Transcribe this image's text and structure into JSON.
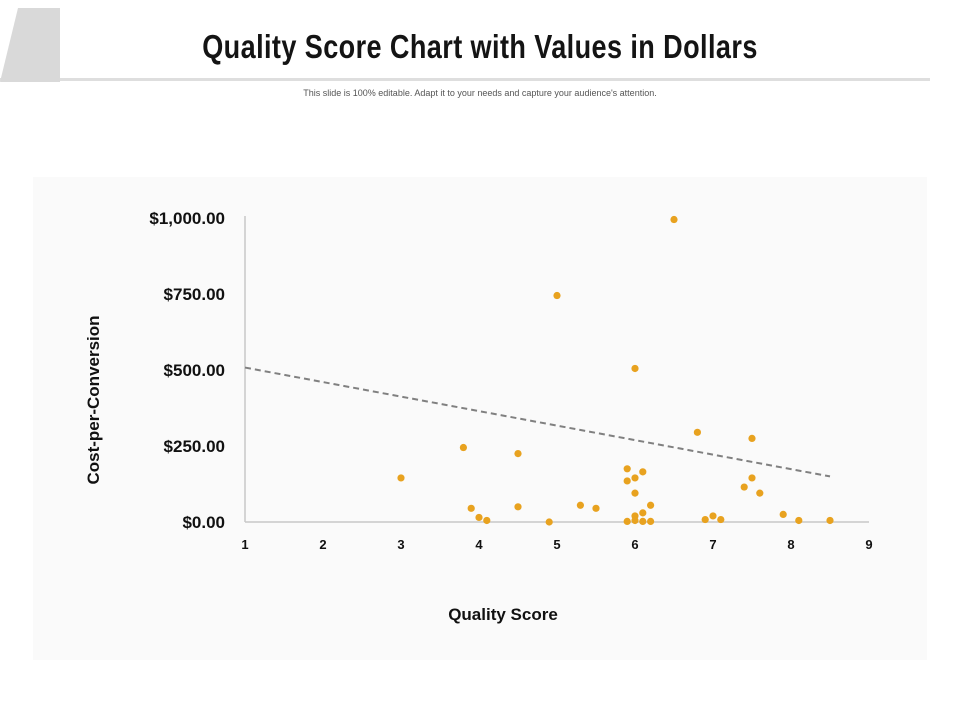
{
  "slide": {
    "title": "Quality Score Chart with Values in Dollars",
    "subtitle": "This slide is 100% editable. Adapt it to your needs and capture your audience's attention."
  },
  "colors": {
    "point": "#E8A21F",
    "trendline": "#808080",
    "axis": "#c8c8c8",
    "panel": "#fafafa",
    "accent_shape": "#d9d9d9"
  },
  "chart_data": {
    "type": "scatter",
    "title": "",
    "xlabel": "Quality Score",
    "ylabel": "Cost-per-Conversion",
    "xlim": [
      1,
      9
    ],
    "ylim": [
      0,
      1000
    ],
    "x_ticks": [
      "1",
      "2",
      "3",
      "4",
      "5",
      "6",
      "7",
      "8",
      "9"
    ],
    "y_ticks": [
      "$0.00",
      "$250.00",
      "$500.00",
      "$750.00",
      "$1,000.00"
    ],
    "grid": false,
    "legend": "none",
    "series": [
      {
        "points": [
          [
            3.0,
            145
          ],
          [
            3.8,
            245
          ],
          [
            3.9,
            45
          ],
          [
            4.0,
            15
          ],
          [
            4.1,
            5
          ],
          [
            4.5,
            225
          ],
          [
            4.5,
            50
          ],
          [
            4.9,
            0
          ],
          [
            5.0,
            745
          ],
          [
            5.3,
            55
          ],
          [
            5.5,
            45
          ],
          [
            5.9,
            175
          ],
          [
            5.9,
            135
          ],
          [
            6.0,
            505
          ],
          [
            6.0,
            145
          ],
          [
            6.0,
            95
          ],
          [
            6.0,
            20
          ],
          [
            6.0,
            5
          ],
          [
            5.9,
            2
          ],
          [
            6.1,
            165
          ],
          [
            6.1,
            30
          ],
          [
            6.1,
            2
          ],
          [
            6.2,
            55
          ],
          [
            6.2,
            2
          ],
          [
            6.5,
            995
          ],
          [
            6.8,
            295
          ],
          [
            6.9,
            8
          ],
          [
            7.0,
            20
          ],
          [
            7.1,
            8
          ],
          [
            7.4,
            115
          ],
          [
            7.5,
            275
          ],
          [
            7.5,
            145
          ],
          [
            7.6,
            95
          ],
          [
            7.9,
            25
          ],
          [
            8.1,
            5
          ],
          [
            8.5,
            5
          ]
        ]
      }
    ],
    "trendline": {
      "type": "linear",
      "start": [
        1,
        508
      ],
      "end": [
        8.5,
        150
      ]
    }
  }
}
